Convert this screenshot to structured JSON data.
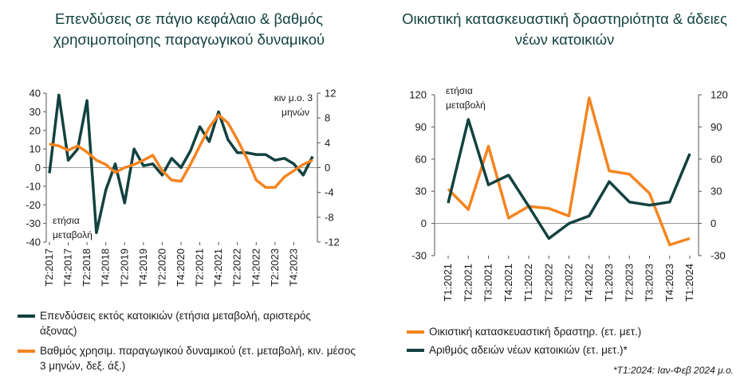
{
  "colors": {
    "dark": "#12423f",
    "orange": "#f5841f",
    "title": "#12423f"
  },
  "chart_data": [
    {
      "type": "line",
      "title": "Επενδύσεις σε πάγιο κεφάλαιο & βαθμός χρησιμοποίησης παραγωγικού δυναμικού",
      "left_axis_note": "ετήσια μεταβολή",
      "right_axis_note": "κιν μ.ο. 3 μηνών",
      "ylim_left": [
        -40,
        40
      ],
      "yticks_left": [
        "40",
        "30",
        "20",
        "10",
        "0",
        "-10",
        "-20",
        "-30",
        "-40"
      ],
      "ylim_right": [
        -12,
        12
      ],
      "yticks_right": [
        "12",
        "8",
        "4",
        "0",
        "-4",
        "-8",
        "-12"
      ],
      "x_labels": [
        "T2:2017",
        "T4:2017",
        "T2:2018",
        "T4:2018",
        "T2:2019",
        "T4:2019",
        "T2:2020",
        "T4:2020",
        "T2:2021",
        "T4:2021",
        "T2:2022",
        "T4:2022",
        "T2:2023",
        "T4:2023"
      ],
      "series": [
        {
          "name": "Επενδύσεις εκτός κατοικιών (ετήσια μεταβολή, αριστερός άξονας)",
          "axis": "left",
          "color": "dark",
          "values": [
            -3,
            39,
            4,
            10,
            36,
            -35,
            -12,
            2,
            -19,
            10,
            1,
            2,
            -4,
            5,
            0,
            9,
            22,
            14,
            30,
            15,
            8,
            8,
            7,
            7,
            4,
            5,
            2,
            -4,
            6
          ]
        },
        {
          "name": "Βαθμός χρησιμ. παραγωγικού δυναμικού (ετ. μεταβολή, κιν. μέσος 3 μηνών, δεξ. άξ.)",
          "axis": "right",
          "color": "orange",
          "values": [
            3.8,
            3.5,
            2.8,
            3.5,
            2.5,
            1.2,
            0.5,
            -0.8,
            0,
            0.5,
            1.2,
            2.0,
            -0.5,
            -2,
            -2.2,
            0.5,
            3.5,
            6.5,
            8.5,
            7.2,
            4.5,
            1.5,
            -2,
            -3.2,
            -3.2,
            -1.5,
            -0.5,
            0.5,
            1.2
          ]
        }
      ]
    },
    {
      "type": "line",
      "title": "Οικιστική κατασκευαστική δραστηριότητα & άδειες νέων κατοικιών",
      "left_axis_note": "ετήσια μεταβολή",
      "ylim": [
        -30,
        120
      ],
      "yticks": [
        "120",
        "90",
        "60",
        "30",
        "0",
        "-30"
      ],
      "x_labels": [
        "T1:2021",
        "T2:2021",
        "T3:2021",
        "T4:2021",
        "T1:2022",
        "T2:2022",
        "T3:2022",
        "T4:2022",
        "T1:2023",
        "T2:2023",
        "T3:2023",
        "T4:2023",
        "T1:2024"
      ],
      "series": [
        {
          "name": "Οικιστική κατασκευαστική δραστηρ. (ετ. μετ.)",
          "color": "orange",
          "values": [
            32,
            13,
            72,
            5,
            16,
            14,
            7,
            117,
            49,
            46,
            28,
            -20,
            -14
          ]
        },
        {
          "name": "Αριθμός αδειών νέων κατοικιών (ετ. μετ.)*",
          "color": "dark",
          "values": [
            19,
            97,
            36,
            45,
            16,
            -14,
            0,
            7,
            39,
            20,
            17,
            20,
            65
          ]
        }
      ],
      "footnote": "*T1:2024: Ιαν-Φεβ 2024 μ.ο."
    }
  ]
}
